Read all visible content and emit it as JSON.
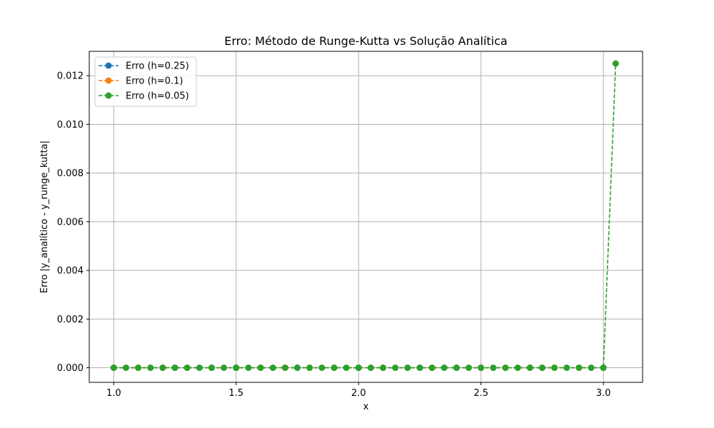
{
  "chart_data": {
    "type": "line",
    "title": "Erro: Método de Runge-Kutta vs Solução Analítica",
    "xlabel": "x",
    "ylabel": "Erro |y_analítico - y_runge_kutta|",
    "xlim": [
      0.9,
      3.16
    ],
    "ylim": [
      -0.0006,
      0.013
    ],
    "xticks": [
      1.0,
      1.5,
      2.0,
      2.5,
      3.0
    ],
    "xtick_labels": [
      "1.0",
      "1.5",
      "2.0",
      "2.5",
      "3.0"
    ],
    "yticks": [
      0.0,
      0.002,
      0.004,
      0.006,
      0.008,
      0.01,
      0.012
    ],
    "ytick_labels": [
      "0.000",
      "0.002",
      "0.004",
      "0.006",
      "0.008",
      "0.010",
      "0.012"
    ],
    "grid": true,
    "legend_position": "top-left",
    "series": [
      {
        "name": "Erro (h=0.25)",
        "color": "#1f77b4",
        "x": [
          1.0,
          1.25,
          1.5,
          1.75,
          2.0,
          2.25,
          2.5,
          2.75,
          3.0
        ],
        "y": [
          0,
          0,
          0,
          0,
          0,
          0,
          0,
          0,
          0
        ]
      },
      {
        "name": "Erro (h=0.1)",
        "color": "#ff7f0e",
        "x": [
          1.0,
          1.1,
          1.2,
          1.3,
          1.4,
          1.5,
          1.6,
          1.7,
          1.8,
          1.9,
          2.0,
          2.1,
          2.2,
          2.3,
          2.4,
          2.5,
          2.6,
          2.7,
          2.8,
          2.9,
          3.0
        ],
        "y": [
          0,
          0,
          0,
          0,
          0,
          0,
          0,
          0,
          0,
          0,
          0,
          0,
          0,
          0,
          0,
          0,
          0,
          0,
          0,
          0,
          0
        ]
      },
      {
        "name": "Erro (h=0.05)",
        "color": "#2ca02c",
        "x": [
          1.0,
          1.05,
          1.1,
          1.15,
          1.2,
          1.25,
          1.3,
          1.35,
          1.4,
          1.45,
          1.5,
          1.55,
          1.6,
          1.65,
          1.7,
          1.75,
          1.8,
          1.85,
          1.9,
          1.95,
          2.0,
          2.05,
          2.1,
          2.15,
          2.2,
          2.25,
          2.3,
          2.35,
          2.4,
          2.45,
          2.5,
          2.55,
          2.6,
          2.65,
          2.7,
          2.75,
          2.8,
          2.85,
          2.9,
          2.95,
          3.0,
          3.05
        ],
        "y": [
          0,
          0,
          0,
          0,
          0,
          0,
          0,
          0,
          0,
          0,
          0,
          0,
          0,
          0,
          0,
          0,
          0,
          0,
          0,
          0,
          0,
          0,
          0,
          0,
          0,
          0,
          0,
          0,
          0,
          0,
          0,
          0,
          0,
          0,
          0,
          0,
          0,
          0,
          0,
          0,
          0,
          0.0125
        ]
      }
    ]
  }
}
